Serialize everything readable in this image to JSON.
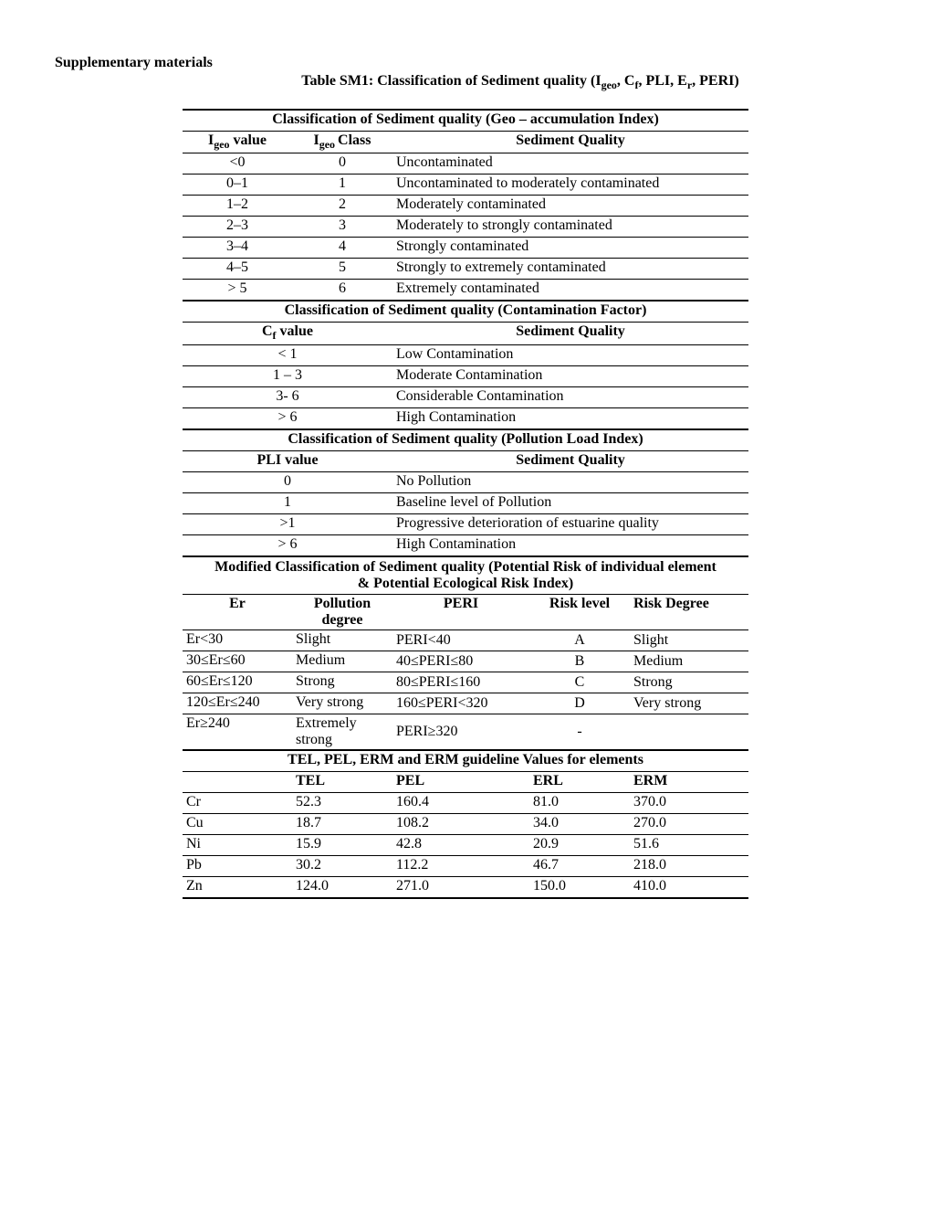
{
  "header": {
    "supplementary": "Supplementary materials",
    "title_prefix": "Table SM1: Classification of Sediment quality (I",
    "title_geo": "geo",
    "title_mid": ", C",
    "title_f": "f",
    "title_mid2": ", PLI, E",
    "title_r": "r",
    "title_suffix": ", PERI)"
  },
  "geo": {
    "section": "Classification of Sediment quality (Geo – accumulation Index)",
    "col1_pre": "I",
    "col1_sub": "geo",
    "col1_post": " value",
    "col2_pre": "I",
    "col2_sub": "geo ",
    "col2_post": "Class",
    "col3": "Sediment Quality",
    "rows": [
      {
        "v": "<0",
        "c": "0",
        "q": "Uncontaminated"
      },
      {
        "v": "0–1",
        "c": "1",
        "q": "Uncontaminated to moderately contaminated"
      },
      {
        "v": "1–2",
        "c": "2",
        "q": "Moderately contaminated"
      },
      {
        "v": "2–3",
        "c": "3",
        "q": "Moderately to strongly contaminated"
      },
      {
        "v": "3–4",
        "c": "4",
        "q": "Strongly contaminated"
      },
      {
        "v": "4–5",
        "c": "5",
        "q": "Strongly to extremely contaminated"
      },
      {
        "v": "> 5",
        "c": "6",
        "q": "Extremely contaminated"
      }
    ]
  },
  "cf": {
    "section": "Classification of Sediment quality (Contamination Factor)",
    "col1_pre": "C",
    "col1_sub": "f",
    "col1_post": " value",
    "col2": "Sediment Quality",
    "rows": [
      {
        "v": "< 1",
        "q": "Low Contamination"
      },
      {
        "v": "1 – 3",
        "q": "Moderate Contamination"
      },
      {
        "v": "3- 6",
        "q": "Considerable Contamination"
      },
      {
        "v": "> 6",
        "q": "High Contamination"
      }
    ]
  },
  "pli": {
    "section": "Classification of Sediment quality (Pollution Load Index)",
    "col1": "PLI value",
    "col2": "Sediment Quality",
    "rows": [
      {
        "v": "0",
        "q": "No Pollution"
      },
      {
        "v": "1",
        "q": "Baseline level of Pollution"
      },
      {
        "v": ">1",
        "q": "Progressive deterioration of estuarine quality"
      },
      {
        "v": "> 6",
        "q": "High Contamination"
      }
    ]
  },
  "peri": {
    "section": "Modified Classification of Sediment quality (Potential Risk of individual element & Potential Ecological Risk Index)",
    "c1": "Er",
    "c2": "Pollution degree",
    "c3": "PERI",
    "c4": "Risk level",
    "c5": "Risk Degree",
    "rows": [
      {
        "er": "Er<30",
        "pd": "Slight",
        "peri": "PERI<40",
        "rl": "A",
        "rd": "Slight"
      },
      {
        "er": "30≤Er≤60",
        "pd": "Medium",
        "peri": "40≤PERI≤80",
        "rl": "B",
        "rd": "Medium"
      },
      {
        "er": "60≤Er≤120",
        "pd": "Strong",
        "peri": "80≤PERI≤160",
        "rl": "C",
        "rd": "Strong"
      },
      {
        "er": "120≤Er≤240",
        "pd": "Very strong",
        "peri": "160≤PERI<320",
        "rl": "D",
        "rd": "Very strong"
      },
      {
        "er": "Er≥240",
        "pd": "Extremely strong",
        "peri": "PERI≥320",
        "rl": "-",
        "rd": ""
      }
    ]
  },
  "guide": {
    "section": "TEL, PEL, ERM and ERM guideline Values for elements",
    "c1": "",
    "c2": "TEL",
    "c3": "PEL",
    "c4": "ERL",
    "c5": "ERM",
    "rows": [
      {
        "el": "Cr",
        "tel": "52.3",
        "pel": "160.4",
        "erl": "81.0",
        "erm": "370.0"
      },
      {
        "el": "Cu",
        "tel": "18.7",
        "pel": "108.2",
        "erl": "34.0",
        "erm": "270.0"
      },
      {
        "el": "Ni",
        "tel": "15.9",
        "pel": "42.8",
        "erl": "20.9",
        "erm": "51.6"
      },
      {
        "el": "Pb",
        "tel": "30.2",
        "pel": "112.2",
        "erl": "46.7",
        "erm": "218.0"
      },
      {
        "el": "Zn",
        "tel": "124.0",
        "pel": "271.0",
        "erl": "150.0",
        "erm": "410.0"
      }
    ]
  },
  "style": {
    "col_widths_5": [
      120,
      110,
      150,
      110,
      130
    ],
    "col_widths_3": [
      120,
      110,
      390
    ],
    "col_widths_2": [
      230,
      390
    ]
  }
}
